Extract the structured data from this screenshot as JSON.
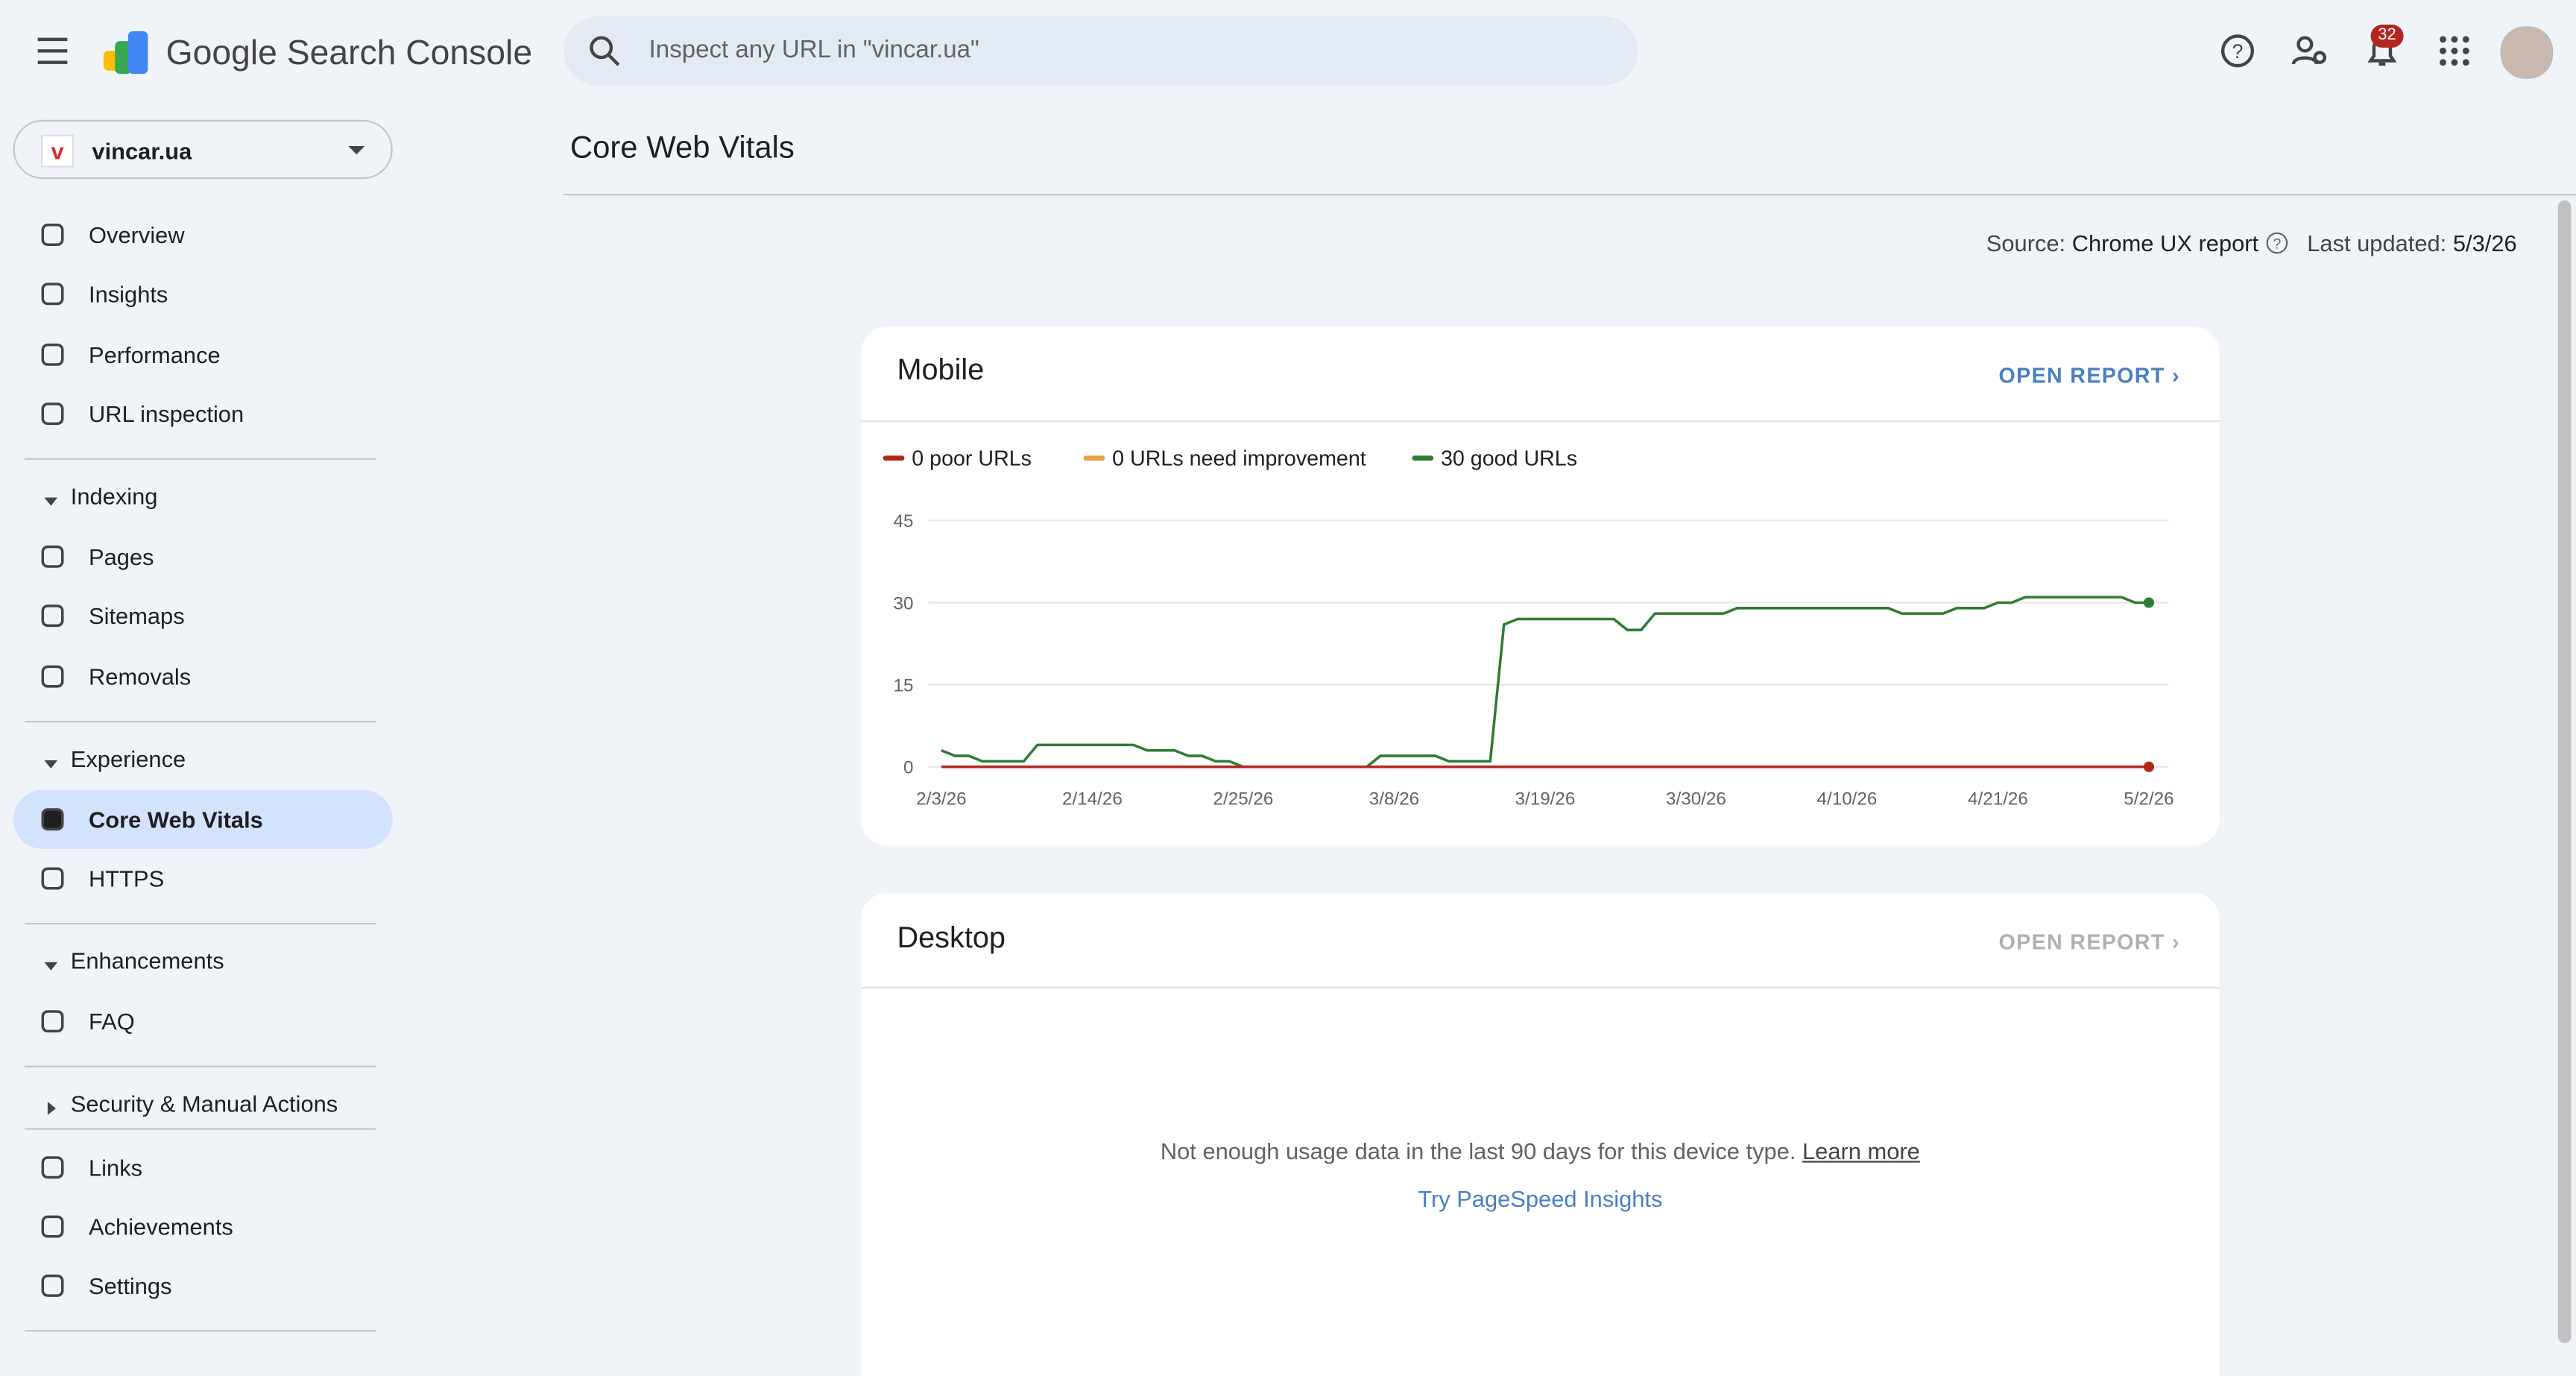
{
  "header": {
    "product": "Google Search Console",
    "search_placeholder": "Inspect any URL in \"vincar.ua\"",
    "notifications": "32"
  },
  "sidebar": {
    "property": "vincar.ua",
    "groups": [
      {
        "items": [
          {
            "label": "Overview"
          },
          {
            "label": "Insights"
          },
          {
            "label": "Performance"
          },
          {
            "label": "URL inspection"
          }
        ]
      },
      {
        "title": "Indexing",
        "items": [
          {
            "label": "Pages"
          },
          {
            "label": "Sitemaps"
          },
          {
            "label": "Removals"
          }
        ]
      },
      {
        "title": "Experience",
        "items": [
          {
            "label": "Core Web Vitals",
            "active": true
          },
          {
            "label": "HTTPS"
          }
        ]
      },
      {
        "title": "Enhancements",
        "items": [
          {
            "label": "FAQ"
          }
        ]
      },
      {
        "title": "Security & Manual Actions",
        "collapsed": true,
        "items": []
      },
      {
        "items": [
          {
            "label": "Links"
          },
          {
            "label": "Achievements"
          },
          {
            "label": "Settings"
          }
        ]
      }
    ]
  },
  "page": {
    "title": "Core Web Vitals",
    "source_label": "Source:",
    "source": "Chrome UX report",
    "updated_label": "Last updated:",
    "updated": "5/3/26"
  },
  "mobile": {
    "title": "Mobile",
    "action": "OPEN REPORT",
    "chart": {
      "type": "line",
      "x": [
        "2/3/26",
        null,
        null,
        null,
        null,
        null,
        null,
        null,
        null,
        null,
        null,
        "2/14/26",
        null,
        null,
        null,
        null,
        null,
        null,
        null,
        null,
        null,
        null,
        "2/25/26",
        null,
        null,
        null,
        null,
        null,
        null,
        null,
        null,
        null,
        null,
        "3/8/26",
        null,
        null,
        null,
        null,
        null,
        null,
        null,
        null,
        null,
        null,
        "3/19/26",
        null,
        null,
        null,
        null,
        null,
        null,
        null,
        null,
        null,
        null,
        "3/30/26",
        null,
        null,
        null,
        null,
        null,
        null,
        null,
        null,
        null,
        null,
        "4/10/26",
        null,
        null,
        null,
        null,
        null,
        null,
        null,
        null,
        null,
        null,
        "4/21/26",
        null,
        null,
        null,
        null,
        null,
        null,
        null,
        null,
        null,
        null,
        "5/2/26"
      ],
      "series": [
        {
          "name": "0 poor URLs",
          "color": "#b3261e",
          "values": [
            0,
            0,
            0,
            0,
            0,
            0,
            0,
            0,
            0,
            0,
            0,
            0,
            0,
            0,
            0,
            0,
            0,
            0,
            0,
            0,
            0,
            0,
            0,
            0,
            0,
            0,
            0,
            0,
            0,
            0,
            0,
            0,
            0,
            0,
            0,
            0,
            0,
            0,
            0,
            0,
            0,
            0,
            0,
            0,
            0,
            0,
            0,
            0,
            0,
            0,
            0,
            0,
            0,
            0,
            0,
            0,
            0,
            0,
            0,
            0,
            0,
            0,
            0,
            0,
            0,
            0,
            0,
            0,
            0,
            0,
            0,
            0,
            0,
            0,
            0,
            0,
            0,
            0,
            0,
            0,
            0,
            0,
            0,
            0,
            0,
            0,
            0,
            0,
            0
          ]
        },
        {
          "name": "0 URLs need improvement",
          "color": "#e8a33d",
          "values": [
            0,
            0,
            0,
            0,
            0,
            0,
            0,
            0,
            0,
            0,
            0,
            0,
            0,
            0,
            0,
            0,
            0,
            0,
            0,
            0,
            0,
            0,
            0,
            0,
            0,
            0,
            0,
            0,
            0,
            0,
            0,
            0,
            0,
            0,
            0,
            0,
            0,
            0,
            0,
            0,
            0,
            0,
            0,
            0,
            0,
            0,
            0,
            0,
            0,
            0,
            0,
            0,
            0,
            0,
            0,
            0,
            0,
            0,
            0,
            0,
            0,
            0,
            0,
            0,
            0,
            0,
            0,
            0,
            0,
            0,
            0,
            0,
            0,
            0,
            0,
            0,
            0,
            0,
            0,
            0,
            0,
            0,
            0,
            0,
            0,
            0,
            0,
            0,
            0
          ]
        },
        {
          "name": "30 good URLs",
          "color": "#2e7d32",
          "values": [
            3,
            2,
            2,
            1,
            1,
            1,
            1,
            4,
            4,
            4,
            4,
            4,
            4,
            4,
            4,
            3,
            3,
            3,
            2,
            2,
            1,
            1,
            0,
            0,
            0,
            0,
            0,
            0,
            0,
            0,
            0,
            0,
            2,
            2,
            2,
            2,
            2,
            1,
            1,
            1,
            1,
            26,
            27,
            27,
            27,
            27,
            27,
            27,
            27,
            27,
            25,
            25,
            28,
            28,
            28,
            28,
            28,
            28,
            29,
            29,
            29,
            29,
            29,
            29,
            29,
            29,
            29,
            29,
            29,
            29,
            28,
            28,
            28,
            28,
            29,
            29,
            29,
            30,
            30,
            31,
            31,
            31,
            31,
            31,
            31,
            31,
            31,
            30,
            30
          ]
        }
      ],
      "ylim": [
        0,
        45
      ],
      "yticks": [
        0,
        15,
        30,
        45
      ],
      "grid": true
    }
  },
  "desktop": {
    "title": "Desktop",
    "action": "OPEN REPORT",
    "message": "Not enough usage data in the last 90 days for this device type.",
    "link": "Learn more",
    "cta": "Try PageSpeed Insights"
  }
}
